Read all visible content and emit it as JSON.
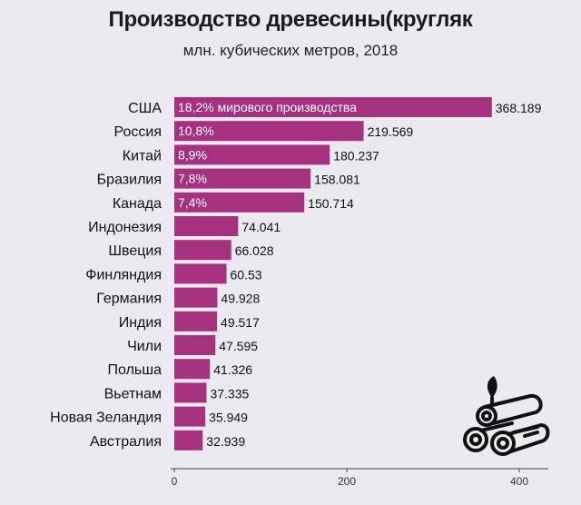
{
  "chart_data": {
    "type": "bar",
    "orientation": "horizontal",
    "title": "Производство древесины(кругляк",
    "subtitle": "млн. кубических метров, 2018",
    "categories": [
      "США",
      "Россия",
      "Китай",
      "Бразилия",
      "Канада",
      "Индонезия",
      "Швеция",
      "Финляндия",
      "Германия",
      "Индия",
      "Чили",
      "Польша",
      "Вьетнам",
      "Новая Зеландия",
      "Австралия"
    ],
    "values": [
      368.189,
      219.569,
      180.237,
      158.081,
      150.714,
      74.041,
      66.028,
      60.53,
      49.928,
      49.517,
      47.595,
      41.326,
      37.335,
      35.949,
      32.939
    ],
    "value_labels": [
      "368.189",
      "219.569",
      "180.237",
      "158.081",
      "150.714",
      "74.041",
      "66.028",
      "60.53",
      "49.928",
      "49.517",
      "47.595",
      "41.326",
      "37.335",
      "35.949",
      "32.939"
    ],
    "bar_annotations": [
      "18,2% мирового производства",
      "10,8%",
      "8,9%",
      "7,8%",
      "7,4%",
      "",
      "",
      "",
      "",
      "",
      "",
      "",
      "",
      "",
      ""
    ],
    "xlim": [
      0,
      420
    ],
    "xticks": [
      0,
      200,
      400
    ],
    "xtick_labels": [
      "0",
      "200",
      "400"
    ],
    "grid": false,
    "bar_color": "#a6317f",
    "background": "#ebeaf1"
  },
  "decor": {
    "icon": "logs-icon",
    "icon_color": "#111111"
  }
}
